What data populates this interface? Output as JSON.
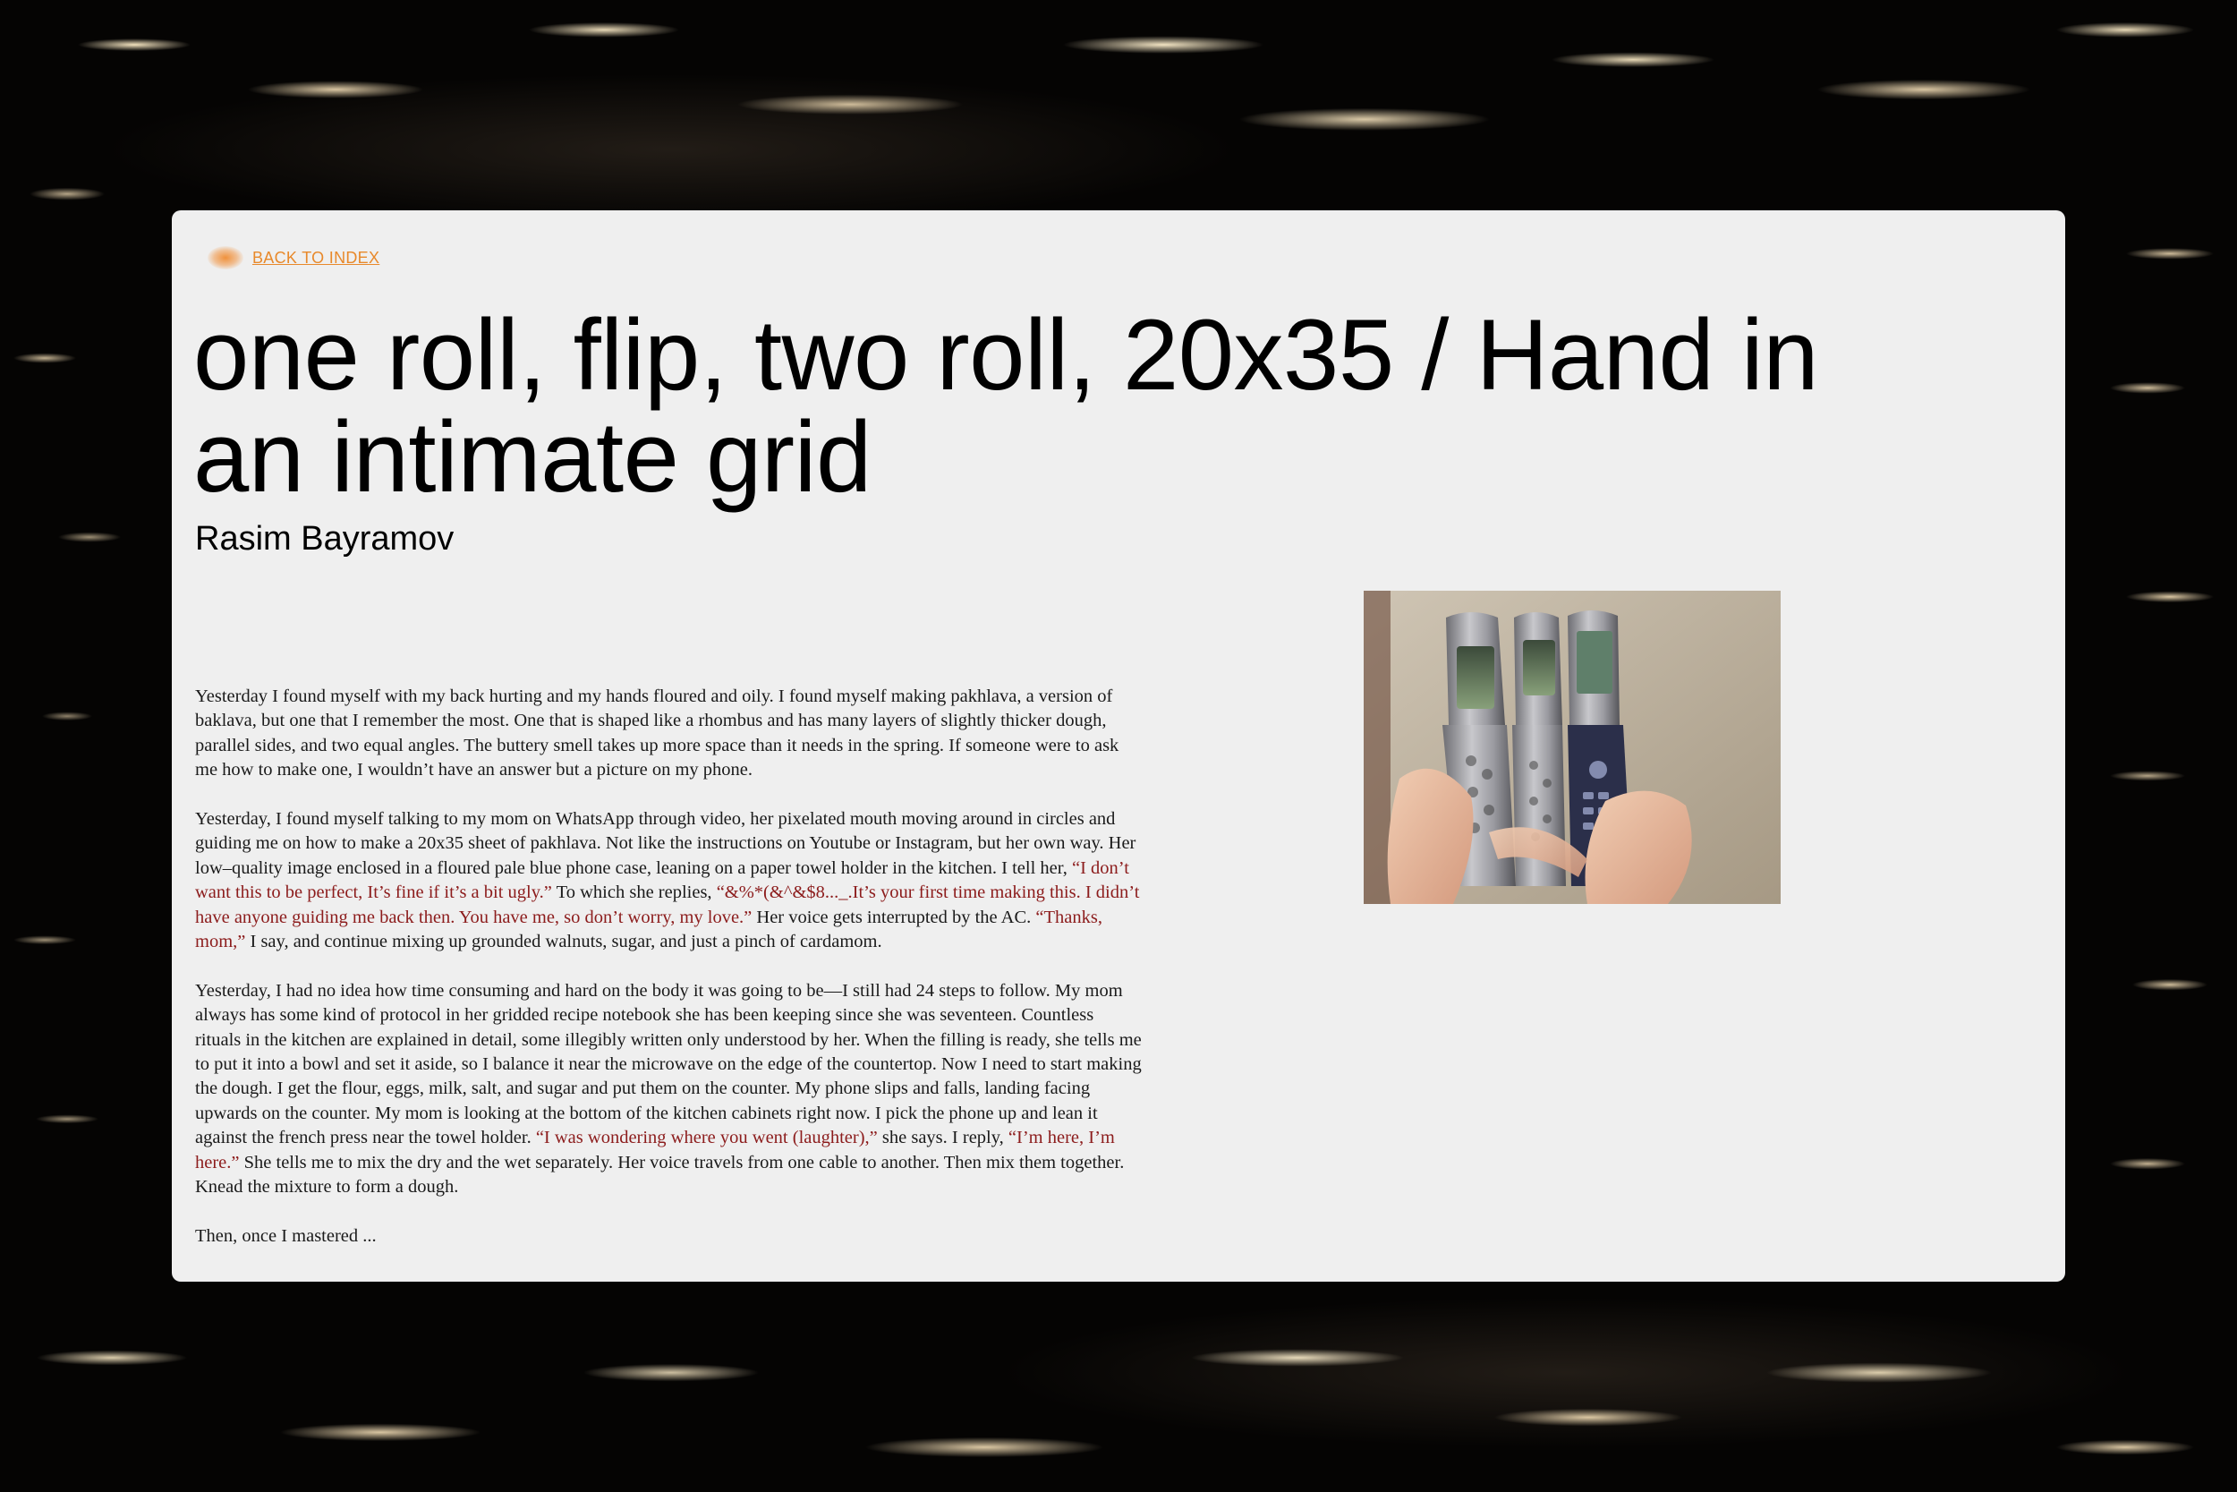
{
  "nav": {
    "back_label": "BACK TO INDEX"
  },
  "article": {
    "title": "one roll, flip, two roll, 20x35 / Hand in an intimate grid",
    "author": "Rasim Bayramov",
    "paragraphs": [
      [
        {
          "text": "Yesterday I found myself with my back hurting and my hands floured and oily. I found myself making pakhlava, a version of baklava, but one that I remember the most. One that is shaped like a rhombus and has many layers of slightly thicker dough, parallel sides, and two equal angles. The buttery smell takes up more space than it needs in the spring. If someone were to ask me how to make one, I wouldn’t have an answer but a picture on my phone.",
          "quote": false
        }
      ],
      [
        {
          "text": "Yesterday, I found myself talking to my mom on WhatsApp through video, her pixelated mouth moving around in circles and guiding me on how to make a 20x35 sheet of pakhlava. Not like the instructions on Youtube or Instagram, but her own way. Her low–quality image enclosed in a floured pale blue phone case, leaning on a paper towel holder in the kitchen. I tell her, ",
          "quote": false
        },
        {
          "text": "“I don’t want this to be perfect, It’s fine if it’s a bit ugly.”",
          "quote": true
        },
        {
          "text": " To which she replies, ",
          "quote": false
        },
        {
          "text": "“&%*(&^&$8..._.It’s your first time making this. I didn’t have anyone guiding me back then. You have me, so don’t worry, my love.”",
          "quote": true
        },
        {
          "text": " Her voice gets interrupted by the AC. ",
          "quote": false
        },
        {
          "text": "“Thanks, mom,”",
          "quote": true
        },
        {
          "text": " I say, and continue mixing up grounded walnuts, sugar, and just a pinch of cardamom.",
          "quote": false
        }
      ],
      [
        {
          "text": "Yesterday, I had no idea how time consuming and hard on the body it was going to be—I still had 24 steps to follow. My mom always has some kind of protocol in her gridded recipe notebook she has been keeping since she was seventeen. Countless rituals in the kitchen are explained in detail, some illegibly written only understood by her. When the filling is ready, she tells me to put it into a bowl and set it aside, so I balance it near the microwave on the edge of the countertop. Now I need to start making the dough. I get the flour, eggs, milk, salt, and sugar and put them on the counter. My phone slips and falls, landing facing upwards on the counter. My mom is looking at the bottom of the kitchen cabinets right now. I pick the phone up and lean it against the french press near the towel holder. ",
          "quote": false
        },
        {
          "text": "“I was wondering where you went (laughter),”",
          "quote": true
        },
        {
          "text": " she says. I reply, ",
          "quote": false
        },
        {
          "text": "“I’m here, I’m here.”",
          "quote": true
        },
        {
          "text": " She tells me to mix the dry and the wet separately. Her voice travels from one cable to another. Then mix them together. Knead the mixture to form a dough.",
          "quote": false
        }
      ],
      [
        {
          "text": "Then, once I mastered ...",
          "quote": false
        }
      ]
    ]
  },
  "colors": {
    "accent": "#e8892b",
    "quote": "#8c1c1c",
    "panel": "#efefef"
  },
  "icons": {
    "back": "glowing-orange-dot-icon"
  }
}
